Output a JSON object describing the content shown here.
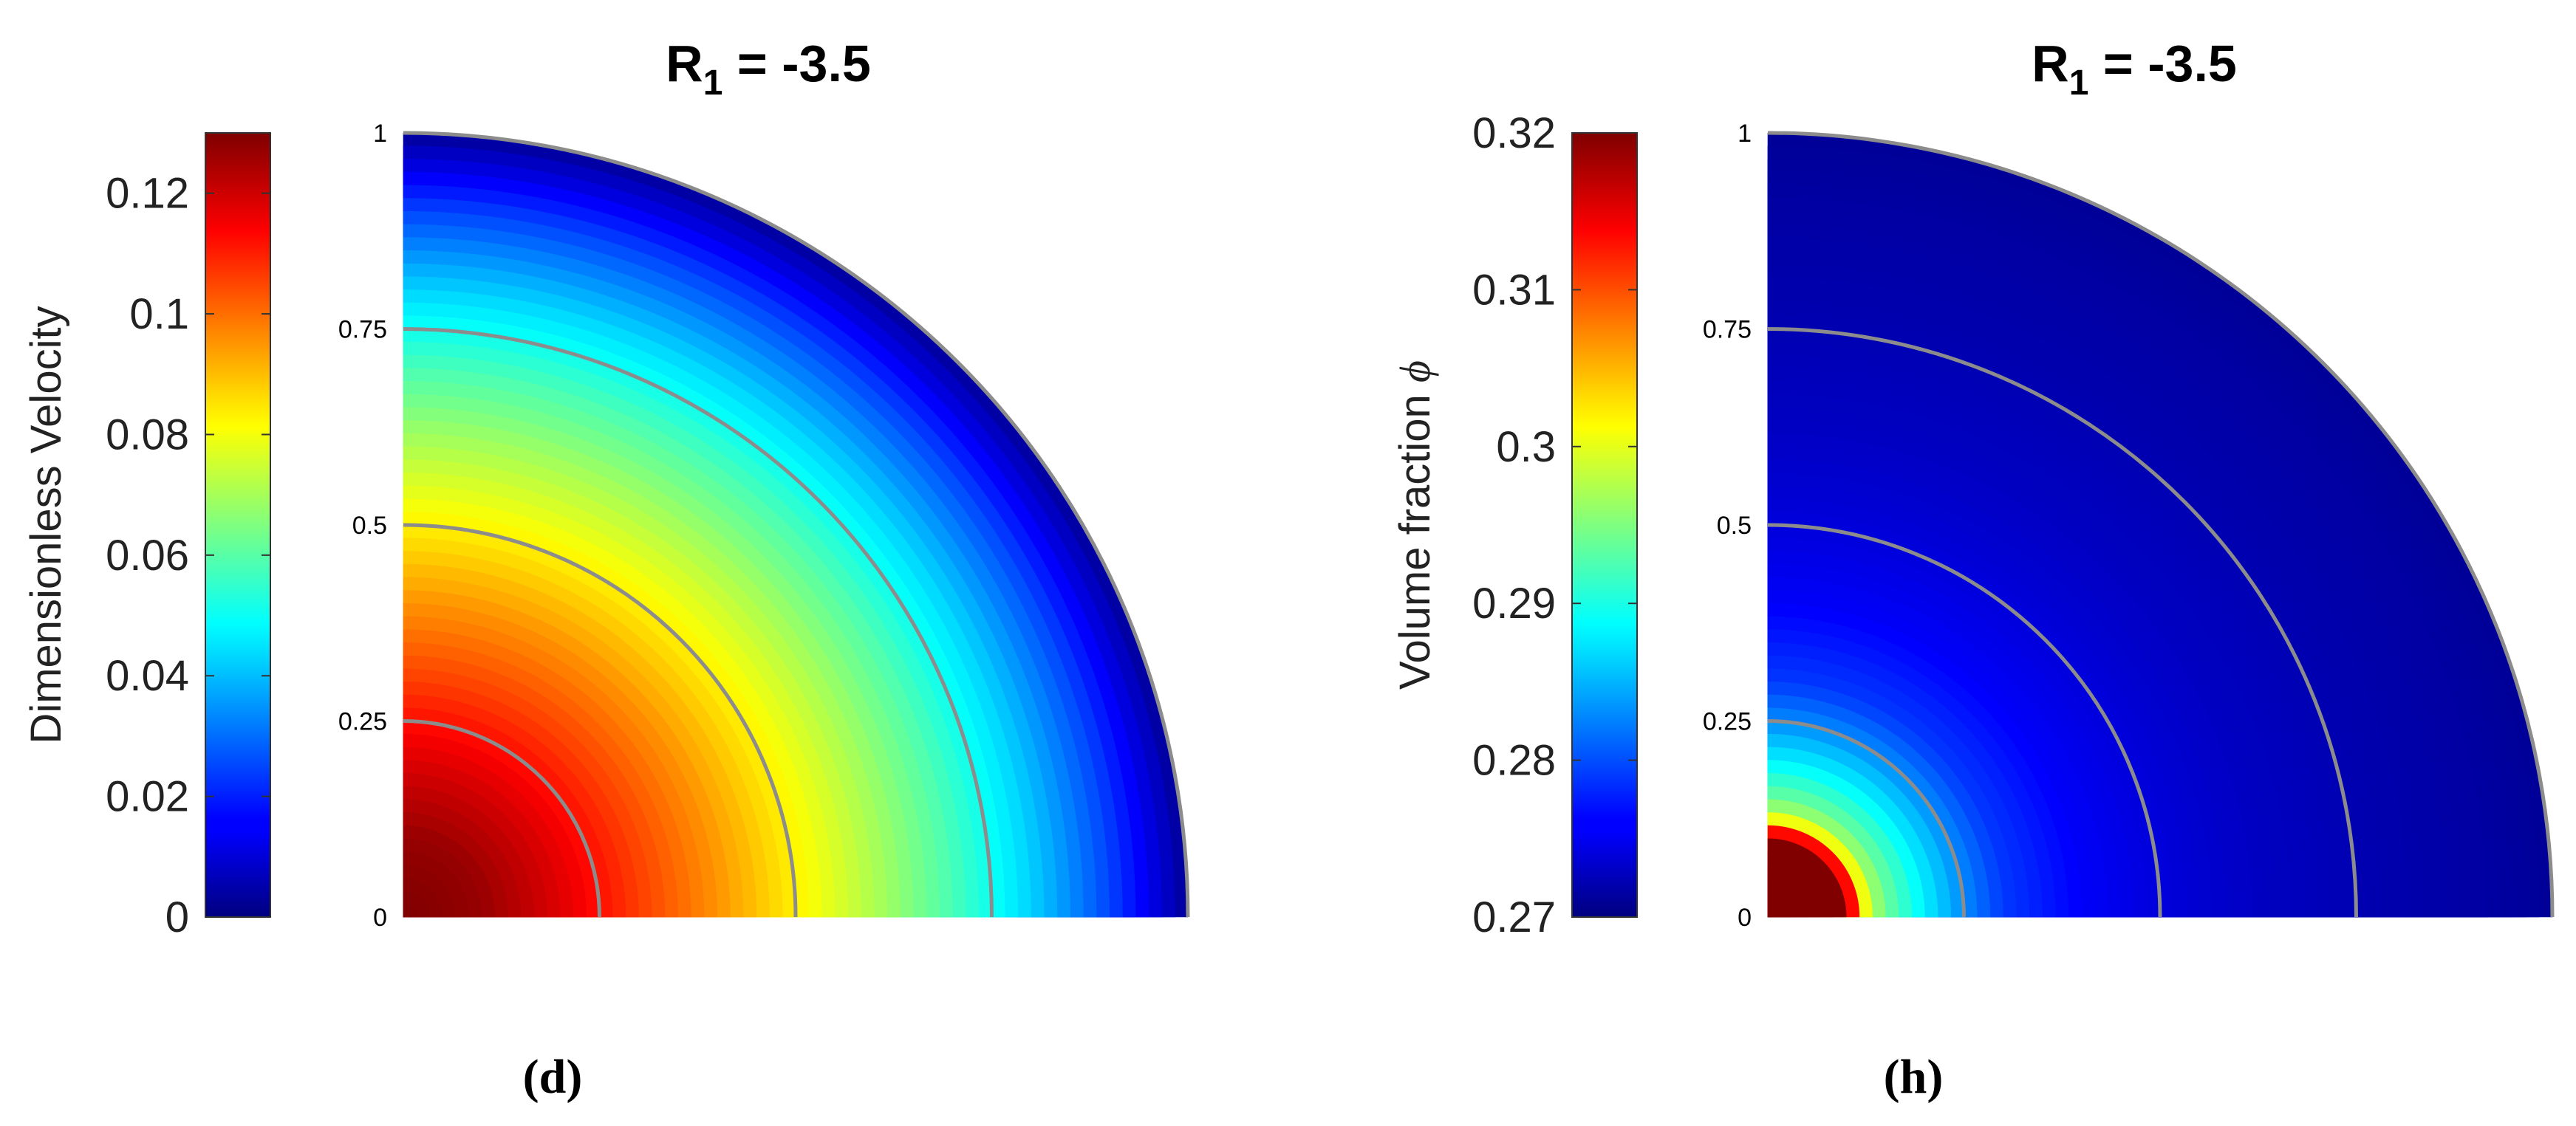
{
  "chart_data": [
    {
      "type": "heatmap",
      "panel": "(d)",
      "title_main": "R",
      "title_sub": "1",
      "title_rest": " = -3.5",
      "colorbar": {
        "label": "Dimensionless Velocity",
        "range": [
          0,
          0.13
        ],
        "ticks": [
          0,
          0.02,
          0.04,
          0.06,
          0.08,
          0.1,
          0.12
        ],
        "tick_labels": [
          "0",
          "0.02",
          "0.04",
          "0.06",
          "0.08",
          "0.1",
          "0.12"
        ],
        "colormap": "jet"
      },
      "radial_ticks": [
        0,
        0.25,
        0.5,
        0.75,
        1
      ],
      "radial_tick_labels": [
        "0",
        "0.25",
        "0.5",
        "0.75",
        "1"
      ],
      "field": {
        "r": [
          0,
          0.1,
          0.2,
          0.3,
          0.4,
          0.5,
          0.6,
          0.7,
          0.8,
          0.9,
          1.0
        ],
        "value": [
          0.13,
          0.127,
          0.118,
          0.106,
          0.095,
          0.083,
          0.071,
          0.058,
          0.043,
          0.025,
          0.003
        ]
      }
    },
    {
      "type": "heatmap",
      "panel": "(h)",
      "title_main": "R",
      "title_sub": "1",
      "title_rest": " = -3.5",
      "colorbar": {
        "label": "Volume fraction",
        "label_symbol": "ϕ",
        "range": [
          0.27,
          0.32
        ],
        "ticks": [
          0.27,
          0.28,
          0.29,
          0.3,
          0.31,
          0.32
        ],
        "tick_labels": [
          "0.27",
          "0.28",
          "0.29",
          "0.3",
          "0.31",
          "0.32"
        ],
        "colormap": "jet"
      },
      "radial_ticks": [
        0,
        0.25,
        0.5,
        0.75,
        1
      ],
      "radial_tick_labels": [
        "0",
        "0.25",
        "0.5",
        "0.75",
        "1"
      ],
      "field": {
        "r": [
          0,
          0.05,
          0.1,
          0.11,
          0.12,
          0.13,
          0.15,
          0.2,
          0.25,
          0.3,
          0.4,
          0.5,
          0.6,
          0.7,
          0.8,
          0.9,
          1.0
        ],
        "value": [
          0.32,
          0.32,
          0.32,
          0.312,
          0.303,
          0.298,
          0.294,
          0.288,
          0.283,
          0.279,
          0.276,
          0.2745,
          0.2735,
          0.2728,
          0.2722,
          0.2718,
          0.2712
        ]
      }
    }
  ],
  "colors": {
    "ring_lines": "#8c8c8c",
    "text": "#222222"
  }
}
